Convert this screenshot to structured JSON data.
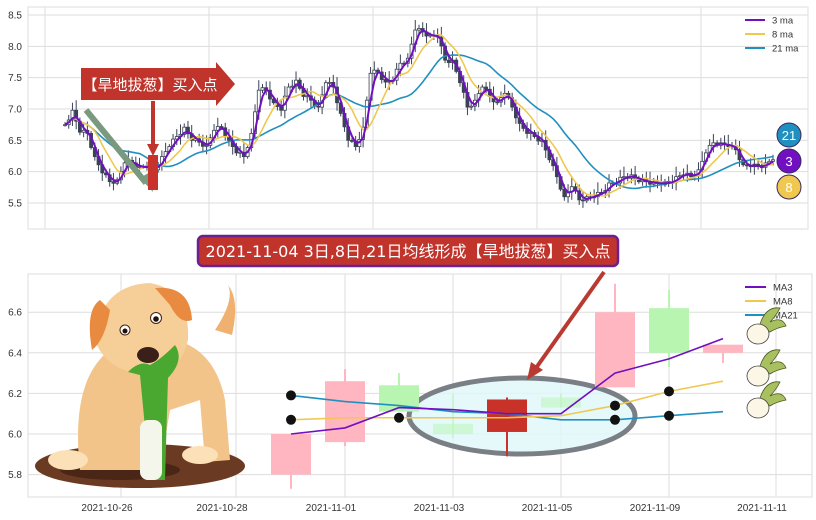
{
  "chart_data": [
    {
      "type": "candlestick",
      "ylim": [
        5.3,
        8.6
      ],
      "yticks": [
        "5.5",
        "6.0",
        "6.5",
        "7.0",
        "7.5",
        "8.0",
        "8.5"
      ],
      "grid": true,
      "legend_position": "top-right",
      "legend": [
        "3 ma",
        "8 ma",
        "21 ma"
      ],
      "series_colors": {
        "ma3": "#7010c0",
        "ma8": "#f0c850",
        "ma21": "#2090c0"
      },
      "close": [
        6.75,
        6.98,
        6.63,
        6.61,
        6.24,
        5.98,
        5.84,
        5.87,
        6.14,
        6.14,
        6.08,
        6.08,
        6.03,
        6.24,
        6.4,
        6.56,
        6.71,
        6.5,
        6.47,
        6.42,
        6.66,
        6.7,
        6.5,
        6.3,
        6.24,
        6.61,
        7.3,
        7.3,
        7.1,
        6.98,
        7.35,
        7.46,
        7.2,
        7.14,
        7.03,
        7.42,
        7.35,
        6.93,
        6.5,
        6.4,
        6.71,
        7.57,
        7.59,
        7.43,
        7.46,
        7.73,
        7.81,
        8.26,
        8.23,
        8.18,
        8.15,
        7.78,
        7.78,
        7.42,
        7.03,
        7.14,
        7.35,
        7.2,
        7.11,
        7.25,
        7.03,
        6.77,
        6.61,
        6.56,
        6.5,
        6.19,
        5.92,
        5.6,
        5.76,
        5.55,
        5.6,
        5.6,
        5.66,
        5.82,
        5.82,
        5.92,
        5.95,
        5.84,
        5.84,
        5.84,
        5.79,
        5.82,
        5.92,
        5.95,
        5.92,
        6.03,
        6.3,
        6.46,
        6.46,
        6.4,
        6.35,
        6.11,
        6.08,
        6.08,
        6.14,
        6.19
      ],
      "annotation": "【旱地拔葱】买入点",
      "badges": [
        "21",
        "3",
        "8"
      ]
    },
    {
      "type": "candlestick",
      "ylim": [
        5.68,
        6.78
      ],
      "yticks": [
        "5.8",
        "6.0",
        "6.2",
        "6.4",
        "6.6"
      ],
      "xticks": [
        "2021-10-26",
        "2021-10-28",
        "2021-11-01",
        "2021-11-03",
        "2021-11-05",
        "2021-11-09",
        "2021-11-11"
      ],
      "grid": true,
      "legend_position": "top-right",
      "legend": [
        "MA3",
        "MA8",
        "MA21"
      ],
      "candles": [
        {
          "open": 5.8,
          "close": 6.0,
          "high": 6.0,
          "low": 5.73
        },
        {
          "open": 5.96,
          "close": 6.26,
          "high": 6.32,
          "low": 5.94
        },
        {
          "open": 6.24,
          "close": 6.11,
          "high": 6.3,
          "low": 6.11
        },
        {
          "open": 6.05,
          "close": 6.0,
          "high": 6.2,
          "low": 5.98
        },
        {
          "open": 6.01,
          "close": 6.17,
          "high": 6.18,
          "low": 5.89
        },
        {
          "open": 6.18,
          "close": 6.13,
          "high": 6.2,
          "low": 6.13
        },
        {
          "open": 6.23,
          "close": 6.6,
          "high": 6.74,
          "low": 6.23
        },
        {
          "open": 6.62,
          "close": 6.4,
          "high": 6.71,
          "low": 6.33
        },
        {
          "open": 6.4,
          "close": 6.44,
          "high": 6.44,
          "low": 6.35
        }
      ],
      "highlight_index": 4,
      "ma3": [
        6.0,
        6.03,
        6.13,
        6.12,
        6.1,
        6.1,
        6.3,
        6.37,
        6.47
      ],
      "ma8": [
        6.07,
        6.08,
        6.08,
        6.08,
        6.08,
        6.09,
        6.14,
        6.21,
        6.26
      ],
      "ma21": [
        6.19,
        6.16,
        6.14,
        6.11,
        6.1,
        6.07,
        6.07,
        6.09,
        6.11
      ],
      "colors": {
        "up": "#ffb6c1",
        "down": "#b8f5b0",
        "highlight": "#c83228",
        "ellipse_fill": "#e0f8fa",
        "ellipse_stroke": "#7a7f86"
      }
    }
  ],
  "title_banner": "2021-11-04 3日,8日,21日均线形成【旱地拔葱】买入点"
}
